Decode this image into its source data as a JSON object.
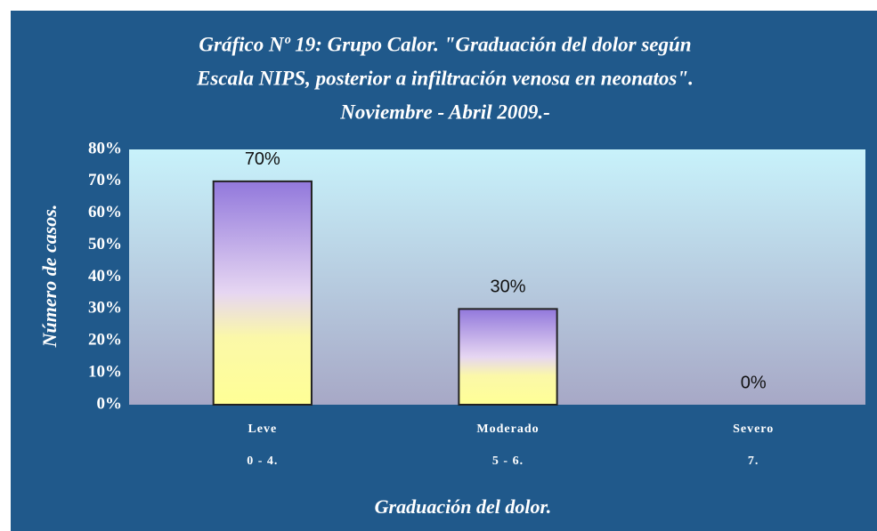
{
  "chart_data": {
    "type": "bar",
    "title_lines": [
      "Gráfico Nº  19: Grupo Calor. \"Graduación del dolor según",
      "Escala NIPS, posterior a infiltración venosa en neonatos\".",
      "Noviembre - Abril 2009.-"
    ],
    "categories": [
      "Leve",
      "Moderado",
      "Severo"
    ],
    "category_ranges": [
      "0 - 4.",
      "5 - 6.",
      "7."
    ],
    "values": [
      70,
      30,
      0
    ],
    "value_labels": [
      "70%",
      "30%",
      "0%"
    ],
    "ylim": [
      0,
      80
    ],
    "yticks": [
      {
        "value": 0,
        "label": "0%"
      },
      {
        "value": 10,
        "label": "10%"
      },
      {
        "value": 20,
        "label": "20%"
      },
      {
        "value": 30,
        "label": "30%"
      },
      {
        "value": 40,
        "label": "40%"
      },
      {
        "value": 50,
        "label": "50%"
      },
      {
        "value": 60,
        "label": "60%"
      },
      {
        "value": 70,
        "label": "70%"
      },
      {
        "value": 80,
        "label": "80%"
      }
    ],
    "y_label": "Número de casos.",
    "x_label": "Graduación del dolor."
  }
}
